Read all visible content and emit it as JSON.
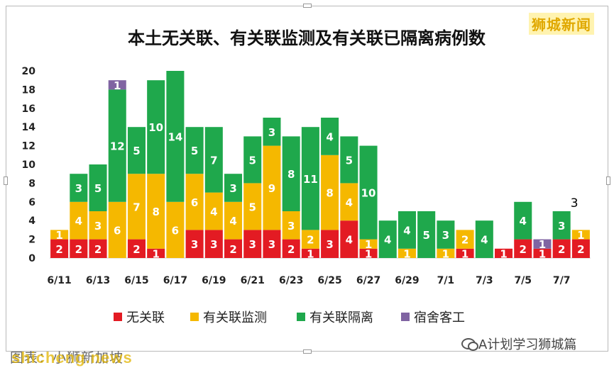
{
  "header": {
    "brand": "狮城新闻"
  },
  "footer": {
    "source_label": "图表：小狮新加坡",
    "site": "shicheng.news",
    "watermark": "A计划学习狮城篇"
  },
  "colors": {
    "unlinked": "#e31b23",
    "linked_surveillance": "#f5b800",
    "linked_quarantine": "#1fa84c",
    "dormitory": "#8064a2"
  },
  "chart_data": {
    "type": "bar",
    "stacked": true,
    "title": "本土无关联、有关联监测及有关联已隔离病例数",
    "xlabel": "",
    "ylabel": "",
    "ylim": [
      0,
      20
    ],
    "yticks": [
      0,
      2,
      4,
      6,
      8,
      10,
      12,
      14,
      16,
      18,
      20
    ],
    "grid": false,
    "legend_position": "bottom",
    "categories": [
      "6/11",
      "6/12",
      "6/13",
      "6/14",
      "6/15",
      "6/16",
      "6/17",
      "6/18",
      "6/19",
      "6/20",
      "6/21",
      "6/22",
      "6/23",
      "6/24",
      "6/25",
      "6/26",
      "6/27",
      "6/28",
      "6/29",
      "6/30",
      "7/1",
      "7/2",
      "7/3",
      "7/4",
      "7/5",
      "7/6",
      "7/7",
      "7/8"
    ],
    "xtick_labels": [
      "6/11",
      "6/13",
      "6/15",
      "6/17",
      "6/19",
      "6/21",
      "6/23",
      "6/25",
      "6/27",
      "6/29",
      "7/1",
      "7/3",
      "7/5",
      "7/7"
    ],
    "series": [
      {
        "name": "无关联",
        "color": "#e31b23",
        "values": [
          2,
          2,
          2,
          0,
          2,
          1,
          0,
          3,
          3,
          2,
          3,
          3,
          2,
          1,
          3,
          4,
          1,
          0,
          0,
          0,
          0,
          1,
          0,
          1,
          2,
          1,
          2,
          2
        ]
      },
      {
        "name": "有关联监测",
        "color": "#f5b800",
        "values": [
          1,
          4,
          3,
          6,
          7,
          8,
          6,
          6,
          4,
          4,
          5,
          9,
          3,
          2,
          8,
          4,
          1,
          0,
          1,
          0,
          1,
          2,
          0,
          0,
          0,
          0,
          0,
          1
        ]
      },
      {
        "name": "有关联隔离",
        "color": "#1fa84c",
        "values": [
          0,
          3,
          5,
          12,
          5,
          10,
          14,
          5,
          7,
          3,
          5,
          3,
          8,
          11,
          4,
          5,
          10,
          4,
          4,
          5,
          3,
          0,
          4,
          0,
          4,
          0,
          3,
          0
        ]
      },
      {
        "name": "宿舍客工",
        "color": "#8064a2",
        "values": [
          0,
          0,
          0,
          1,
          0,
          0,
          0,
          0,
          0,
          0,
          0,
          0,
          0,
          0,
          0,
          0,
          0,
          0,
          0,
          0,
          0,
          0,
          0,
          0,
          0,
          1,
          0,
          0
        ]
      }
    ],
    "annotations": [
      {
        "x": "7/7",
        "text": "3"
      }
    ]
  }
}
